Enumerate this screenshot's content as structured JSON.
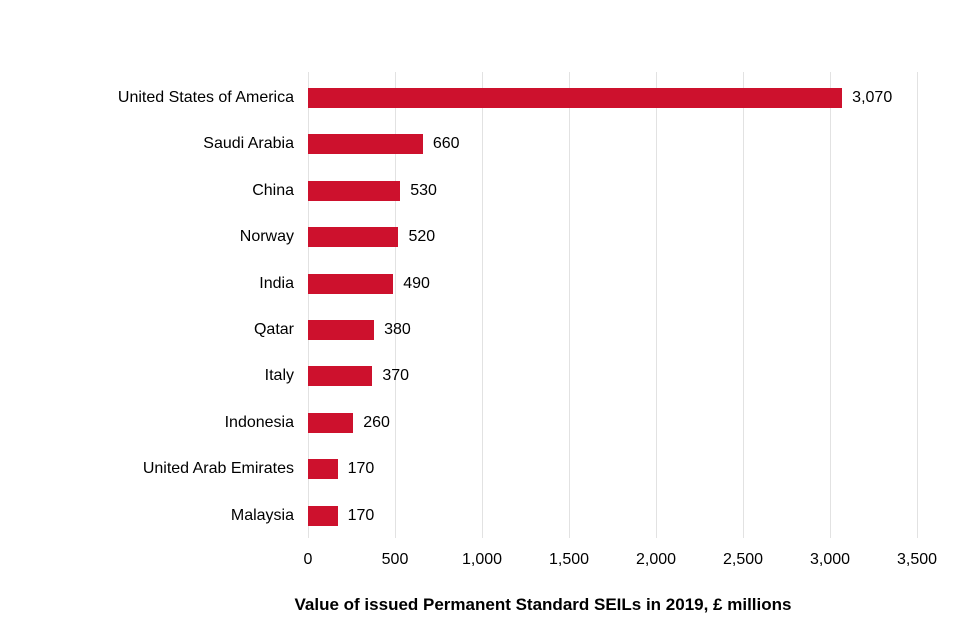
{
  "chart_data": {
    "type": "bar",
    "orientation": "horizontal",
    "title": "",
    "xlabel": "Value of issued Permanent Standard SEILs in 2019, £ millions",
    "ylabel": "",
    "categories": [
      "United States of America",
      "Saudi Arabia",
      "China",
      "Norway",
      "India",
      "Qatar",
      "Italy",
      "Indonesia",
      "United Arab Emirates",
      "Malaysia"
    ],
    "values": [
      3070,
      660,
      530,
      520,
      490,
      380,
      370,
      260,
      170,
      170
    ],
    "value_labels": [
      "3,070",
      "660",
      "530",
      "520",
      "490",
      "380",
      "370",
      "260",
      "170",
      "170"
    ],
    "x_ticks": [
      0,
      500,
      1000,
      1500,
      2000,
      2500,
      3000,
      3500
    ],
    "x_tick_labels": [
      "0",
      "500",
      "1,000",
      "1,500",
      "2,000",
      "2,500",
      "3,000",
      "3,500"
    ],
    "xlim": [
      0,
      3500
    ],
    "grid": "vertical",
    "legend": "none",
    "bar_color": "#CD112D",
    "gridline_color": "#E2E2E2",
    "text_color": "#000000",
    "background_color": "#FFFFFF"
  }
}
